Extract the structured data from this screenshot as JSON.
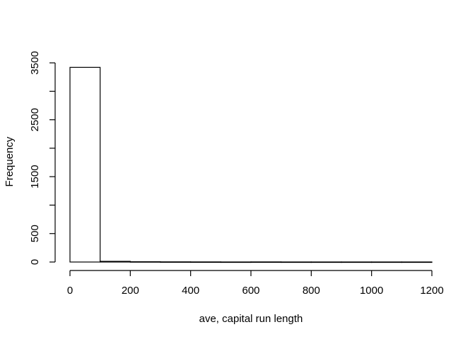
{
  "chart_data": {
    "type": "bar",
    "title": "",
    "xlabel": "ave, capital run length",
    "ylabel": "Frequency",
    "bins": [
      {
        "start": 0,
        "end": 100,
        "count": 3421
      },
      {
        "start": 100,
        "end": 200,
        "count": 12
      },
      {
        "start": 200,
        "end": 300,
        "count": 5
      },
      {
        "start": 300,
        "end": 400,
        "count": 3
      },
      {
        "start": 400,
        "end": 500,
        "count": 2
      },
      {
        "start": 500,
        "end": 600,
        "count": 1
      },
      {
        "start": 600,
        "end": 700,
        "count": 2
      },
      {
        "start": 700,
        "end": 800,
        "count": 1
      },
      {
        "start": 800,
        "end": 900,
        "count": 1
      },
      {
        "start": 900,
        "end": 1000,
        "count": 1
      },
      {
        "start": 1000,
        "end": 1100,
        "count": 1
      },
      {
        "start": 1100,
        "end": 1200,
        "count": 1
      }
    ],
    "xlim": [
      0,
      1200
    ],
    "ylim": [
      0,
      3500
    ],
    "x_ticks": [
      0,
      200,
      400,
      600,
      800,
      1000,
      1200
    ],
    "x_tick_labels": [
      "0",
      "200",
      "400",
      "600",
      "800",
      "1000",
      "1200"
    ],
    "y_ticks": [
      0,
      500,
      1000,
      1500,
      2000,
      2500,
      3000,
      3500
    ],
    "y_tick_labels": [
      "0",
      "500",
      "",
      "1500",
      "",
      "2500",
      "",
      "3500"
    ],
    "grid": false,
    "legend": "none",
    "colors": {
      "bar_fill": "#ffffff",
      "bar_stroke": "#000000",
      "background": "#ffffff"
    }
  }
}
